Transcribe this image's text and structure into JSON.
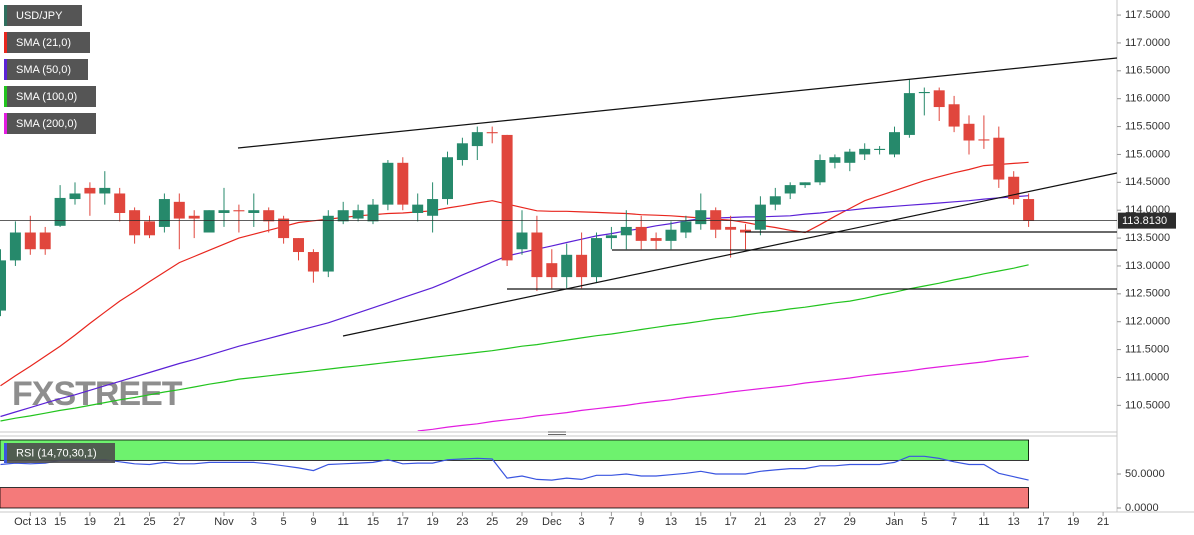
{
  "chart_data": [
    {
      "type": "candlestick",
      "categories": [
        null,
        null,
        "Oct 13",
        null,
        "15",
        null,
        "19",
        null,
        "21",
        null,
        "25",
        null,
        "27",
        null,
        null,
        "Nov",
        null,
        "3",
        null,
        "5",
        null,
        "9",
        null,
        "11",
        null,
        "15",
        null,
        "17",
        null,
        "19",
        null,
        "23",
        null,
        "25",
        null,
        "29",
        null,
        "Dec",
        null,
        "3",
        null,
        "7",
        null,
        "9",
        null,
        "13",
        null,
        "15",
        null,
        "17",
        null,
        "21",
        null,
        "23",
        null,
        "27",
        null,
        "29",
        null,
        null,
        "Jan",
        null,
        "5",
        null,
        "7",
        null,
        "11",
        null,
        "13",
        null,
        "17",
        null,
        "19",
        null,
        "21"
      ],
      "series": [
        {
          "name": "USD/JPY",
          "type": "candlestick",
          "color": "#2f6f5e",
          "up_color": "#26896b",
          "down_color": "#e0463d",
          "open": [
            112.2,
            113.1,
            113.6,
            113.6,
            113.72,
            114.2,
            114.4,
            114.3,
            114.3,
            114.0,
            113.8,
            113.7,
            114.15,
            113.9,
            113.6,
            113.95,
            114.0,
            113.95,
            114.0,
            113.85,
            113.5,
            113.25,
            112.9,
            113.8,
            113.85,
            113.8,
            114.1,
            114.85,
            113.95,
            113.9,
            114.2,
            114.9,
            115.15,
            115.4,
            115.35,
            113.3,
            113.6,
            113.05,
            112.8,
            113.2,
            112.8,
            113.5,
            113.55,
            113.7,
            113.5,
            113.45,
            113.6,
            113.75,
            114.0,
            113.7,
            113.65,
            113.65,
            114.1,
            114.3,
            114.45,
            114.5,
            114.85,
            114.85,
            115.0,
            115.08,
            115.0,
            115.35,
            116.1,
            116.15,
            115.9,
            115.55,
            115.27,
            115.3,
            114.6,
            114.2,
            null,
            null,
            null,
            null,
            null
          ],
          "high": [
            113.3,
            113.8,
            113.9,
            113.7,
            114.45,
            114.5,
            114.5,
            114.7,
            114.4,
            114.05,
            113.9,
            114.3,
            114.3,
            114.0,
            114.0,
            114.4,
            114.1,
            114.3,
            114.05,
            113.9,
            113.5,
            113.3,
            114.0,
            114.15,
            114.1,
            114.2,
            114.9,
            114.95,
            114.3,
            114.5,
            115.05,
            115.3,
            115.5,
            115.5,
            115.35,
            114.0,
            113.9,
            113.3,
            113.4,
            113.6,
            113.6,
            113.7,
            114.0,
            113.9,
            113.6,
            113.8,
            113.9,
            114.3,
            114.05,
            113.9,
            113.75,
            114.25,
            114.4,
            114.5,
            114.5,
            115.0,
            115.0,
            115.1,
            115.2,
            115.15,
            115.5,
            116.35,
            116.2,
            116.2,
            116.05,
            115.7,
            115.7,
            115.5,
            114.7,
            114.3,
            null,
            null,
            null,
            null,
            null
          ],
          "low": [
            112.1,
            113.0,
            113.2,
            113.2,
            113.7,
            114.1,
            113.9,
            114.1,
            113.8,
            113.4,
            113.5,
            113.6,
            113.3,
            113.5,
            113.6,
            113.7,
            113.6,
            113.7,
            113.6,
            113.4,
            113.1,
            112.7,
            112.8,
            113.75,
            113.8,
            113.75,
            114.0,
            114.0,
            113.8,
            113.6,
            114.1,
            114.8,
            114.9,
            115.2,
            113.0,
            113.2,
            112.55,
            112.6,
            112.6,
            112.6,
            112.7,
            113.3,
            113.3,
            113.3,
            113.3,
            113.3,
            113.5,
            113.65,
            113.5,
            113.15,
            113.3,
            113.55,
            114.0,
            114.2,
            114.4,
            114.45,
            114.75,
            114.7,
            114.9,
            115.0,
            114.95,
            115.3,
            115.7,
            115.6,
            115.4,
            115.0,
            115.1,
            114.4,
            114.1,
            113.7,
            null,
            null,
            null,
            null,
            null
          ],
          "close": [
            113.1,
            113.6,
            113.3,
            113.3,
            114.22,
            114.3,
            114.3,
            114.4,
            113.95,
            113.55,
            113.55,
            114.2,
            113.85,
            113.85,
            114.0,
            114.0,
            113.98,
            114.0,
            113.8,
            113.5,
            113.25,
            112.9,
            113.9,
            114.0,
            114.0,
            114.1,
            114.85,
            114.1,
            114.1,
            114.2,
            114.95,
            115.2,
            115.4,
            115.38,
            113.1,
            113.6,
            112.8,
            112.8,
            113.2,
            112.8,
            113.5,
            113.55,
            113.7,
            113.45,
            113.45,
            113.65,
            113.8,
            114.0,
            113.65,
            113.65,
            113.6,
            114.1,
            114.25,
            114.45,
            114.5,
            114.9,
            114.95,
            115.05,
            115.1,
            115.1,
            115.4,
            116.1,
            116.12,
            115.85,
            115.5,
            115.25,
            115.25,
            114.55,
            114.2,
            113.813,
            null,
            null,
            null,
            null,
            null
          ]
        },
        {
          "name": "SMA (21,0)",
          "type": "line",
          "color": "#e8261e",
          "values": [
            110.85,
            111.03,
            111.2,
            111.38,
            111.56,
            111.76,
            111.97,
            112.17,
            112.37,
            112.54,
            112.72,
            112.89,
            113.06,
            113.17,
            113.28,
            113.39,
            113.5,
            113.57,
            113.64,
            113.71,
            113.78,
            113.81,
            113.84,
            113.87,
            113.9,
            113.92,
            113.94,
            113.95,
            113.97,
            113.99,
            114.04,
            114.08,
            114.13,
            114.17,
            114.11,
            114.05,
            113.99,
            113.98,
            113.98,
            113.97,
            113.96,
            113.95,
            113.94,
            113.92,
            113.91,
            113.9,
            113.88,
            113.86,
            113.84,
            113.82,
            113.78,
            113.73,
            113.69,
            113.64,
            113.6,
            113.74,
            113.89,
            114.03,
            114.17,
            114.26,
            114.35,
            114.44,
            114.53,
            114.6,
            114.67,
            114.73,
            114.8,
            114.82,
            114.84,
            114.86,
            null,
            null,
            null,
            null,
            null
          ]
        },
        {
          "name": "SMA (50,0)",
          "type": "line",
          "color": "#5b21d6",
          "values": [
            110.3,
            110.38,
            110.46,
            110.54,
            110.62,
            110.69,
            110.77,
            110.85,
            110.93,
            111.01,
            111.09,
            111.17,
            111.25,
            111.32,
            111.4,
            111.48,
            111.56,
            111.63,
            111.7,
            111.77,
            111.84,
            111.91,
            111.98,
            112.07,
            112.16,
            112.25,
            112.34,
            112.43,
            112.52,
            112.61,
            112.72,
            112.84,
            112.95,
            113.07,
            113.18,
            113.24,
            113.3,
            113.36,
            113.42,
            113.48,
            113.54,
            113.58,
            113.63,
            113.67,
            113.72,
            113.76,
            113.81,
            113.85,
            113.86,
            113.87,
            113.88,
            113.88,
            113.89,
            113.9,
            113.93,
            113.95,
            113.98,
            114.0,
            114.03,
            114.05,
            114.07,
            114.09,
            114.11,
            114.13,
            114.15,
            114.17,
            114.2,
            114.22,
            114.24,
            114.26,
            null,
            null,
            null,
            null,
            null
          ]
        },
        {
          "name": "SMA (100,0)",
          "type": "line",
          "color": "#22c41e",
          "values": [
            110.22,
            110.27,
            110.31,
            110.36,
            110.41,
            110.45,
            110.5,
            110.55,
            110.6,
            110.64,
            110.69,
            110.74,
            110.78,
            110.83,
            110.88,
            110.92,
            110.97,
            111.0,
            111.03,
            111.06,
            111.09,
            111.12,
            111.15,
            111.18,
            111.21,
            111.24,
            111.27,
            111.3,
            111.33,
            111.36,
            111.39,
            111.42,
            111.45,
            111.48,
            111.52,
            111.56,
            111.59,
            111.63,
            111.67,
            111.71,
            111.75,
            111.78,
            111.82,
            111.86,
            111.9,
            111.94,
            111.97,
            112.01,
            112.05,
            112.08,
            112.12,
            112.16,
            112.19,
            112.23,
            112.26,
            112.3,
            112.34,
            112.37,
            112.42,
            112.48,
            112.53,
            112.59,
            112.64,
            112.69,
            112.75,
            112.8,
            112.86,
            112.91,
            112.96,
            113.02,
            null,
            null,
            null,
            null,
            null
          ]
        },
        {
          "name": "SMA (200,0)",
          "type": "line",
          "color": "#e21ce0",
          "values": [
            null,
            null,
            null,
            null,
            null,
            null,
            null,
            null,
            null,
            null,
            null,
            null,
            null,
            null,
            null,
            null,
            null,
            null,
            null,
            null,
            null,
            null,
            null,
            null,
            null,
            null,
            null,
            null,
            110.04,
            110.07,
            110.11,
            110.14,
            110.17,
            110.21,
            110.24,
            110.27,
            110.31,
            110.34,
            110.37,
            110.41,
            110.44,
            110.47,
            110.5,
            110.54,
            110.57,
            110.6,
            110.64,
            110.67,
            110.7,
            110.74,
            110.77,
            110.8,
            110.83,
            110.86,
            110.9,
            110.93,
            110.96,
            110.99,
            111.03,
            111.06,
            111.09,
            111.12,
            111.16,
            111.19,
            111.22,
            111.25,
            111.28,
            111.32,
            111.35,
            111.38,
            null,
            null,
            null,
            null,
            null
          ]
        }
      ],
      "ylim": [
        110.04,
        117.77
      ],
      "yticks": [
        {
          "value": 110.5,
          "label": "110.5000"
        },
        {
          "value": 111,
          "label": "111.0000"
        },
        {
          "value": 111.5,
          "label": "111.5000"
        },
        {
          "value": 112,
          "label": "112.0000"
        },
        {
          "value": 112.5,
          "label": "112.5000"
        },
        {
          "value": 113,
          "label": "113.0000"
        },
        {
          "value": 113.5,
          "label": "113.5000"
        },
        {
          "value": 114,
          "label": "114.0000"
        },
        {
          "value": 114.5,
          "label": "114.5000"
        },
        {
          "value": 115,
          "label": "115.0000"
        },
        {
          "value": 115.5,
          "label": "115.5000"
        },
        {
          "value": 116,
          "label": "116.0000"
        },
        {
          "value": 116.5,
          "label": "116.5000"
        },
        {
          "value": 117,
          "label": "117.0000"
        },
        {
          "value": 117.5,
          "label": "117.5000"
        }
      ],
      "last_price": {
        "value": 113.813,
        "label": "113.8130"
      },
      "watermark": "FXSTREET"
    },
    {
      "type": "line",
      "series": [
        {
          "name": "RSI (14,70,30,1)",
          "color": "#3a55e0",
          "values": [
            64,
            66,
            65,
            66,
            70,
            71,
            70,
            71,
            68,
            65,
            64,
            67,
            65,
            65,
            67,
            67,
            67,
            67,
            65,
            62,
            59,
            55,
            64,
            65,
            66,
            67,
            71,
            65,
            66,
            66,
            71,
            72,
            73,
            72,
            44,
            47,
            42,
            41,
            44,
            42,
            48,
            48,
            50,
            47,
            47,
            49,
            51,
            54,
            50,
            50,
            50,
            54,
            56,
            58,
            58,
            62,
            62,
            64,
            64,
            64,
            67,
            76,
            76,
            73,
            68,
            64,
            64,
            51,
            46,
            41,
            null,
            null,
            null,
            null,
            null
          ]
        }
      ],
      "overbought": 70,
      "oversold": 30,
      "ylim": [
        -5.9,
        104.4
      ],
      "yticks": [
        {
          "value": 0,
          "label": "0.0000"
        },
        {
          "value": 50,
          "label": "50.0000"
        }
      ]
    }
  ]
}
